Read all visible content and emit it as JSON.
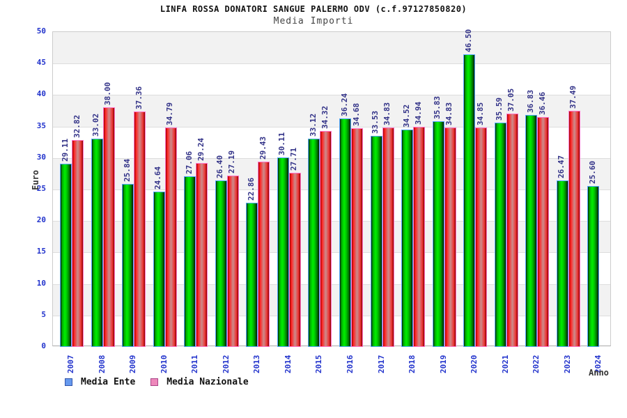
{
  "chart_data": {
    "type": "bar",
    "title": "LINFA ROSSA DONATORI SANGUE PALERMO ODV (c.f.97127850820)",
    "subtitle": "Media Importi",
    "xlabel": "Anno",
    "ylabel": "Euro",
    "ylim": [
      0,
      50
    ],
    "ytick_step": 5,
    "y_ticks": [
      0,
      5,
      10,
      15,
      20,
      25,
      30,
      35,
      40,
      45,
      50
    ],
    "grid": "horizontal-bands-alternating",
    "legend_position": "bottom-left",
    "value_label_decimals": 2,
    "categories": [
      "2007",
      "2008",
      "2009",
      "2010",
      "2011",
      "2012",
      "2013",
      "2014",
      "2015",
      "2016",
      "2017",
      "2018",
      "2019",
      "2020",
      "2021",
      "2022",
      "2023",
      "2024"
    ],
    "series": [
      {
        "name": "Media Ente",
        "bar_color": "#00cc00",
        "bar_border_color": "#55aaff",
        "legend_swatch_color": "#6699ee",
        "legend_swatch_border": "#3355aa",
        "values": [
          29.11,
          33.02,
          25.84,
          24.64,
          27.06,
          26.4,
          22.86,
          30.11,
          33.12,
          36.24,
          33.53,
          34.52,
          35.83,
          46.5,
          35.59,
          36.83,
          26.47,
          25.6
        ]
      },
      {
        "name": "Media Nazionale",
        "bar_color": "#ee2222",
        "bar_border_color": "#ff77cc",
        "legend_swatch_color": "#ee88bb",
        "legend_swatch_border": "#aa4488",
        "values": [
          32.82,
          38.0,
          37.36,
          34.79,
          29.24,
          27.19,
          29.43,
          27.71,
          34.32,
          34.68,
          34.83,
          34.94,
          34.83,
          34.85,
          37.05,
          36.46,
          37.49,
          null
        ]
      }
    ]
  },
  "colors": {
    "tick_label": "#2233cc",
    "value_label": "#333388",
    "axis_text": "#333333",
    "band_gray": "#f2f2f2",
    "gridline": "#dddddd",
    "plot_border": "#cccccc"
  }
}
